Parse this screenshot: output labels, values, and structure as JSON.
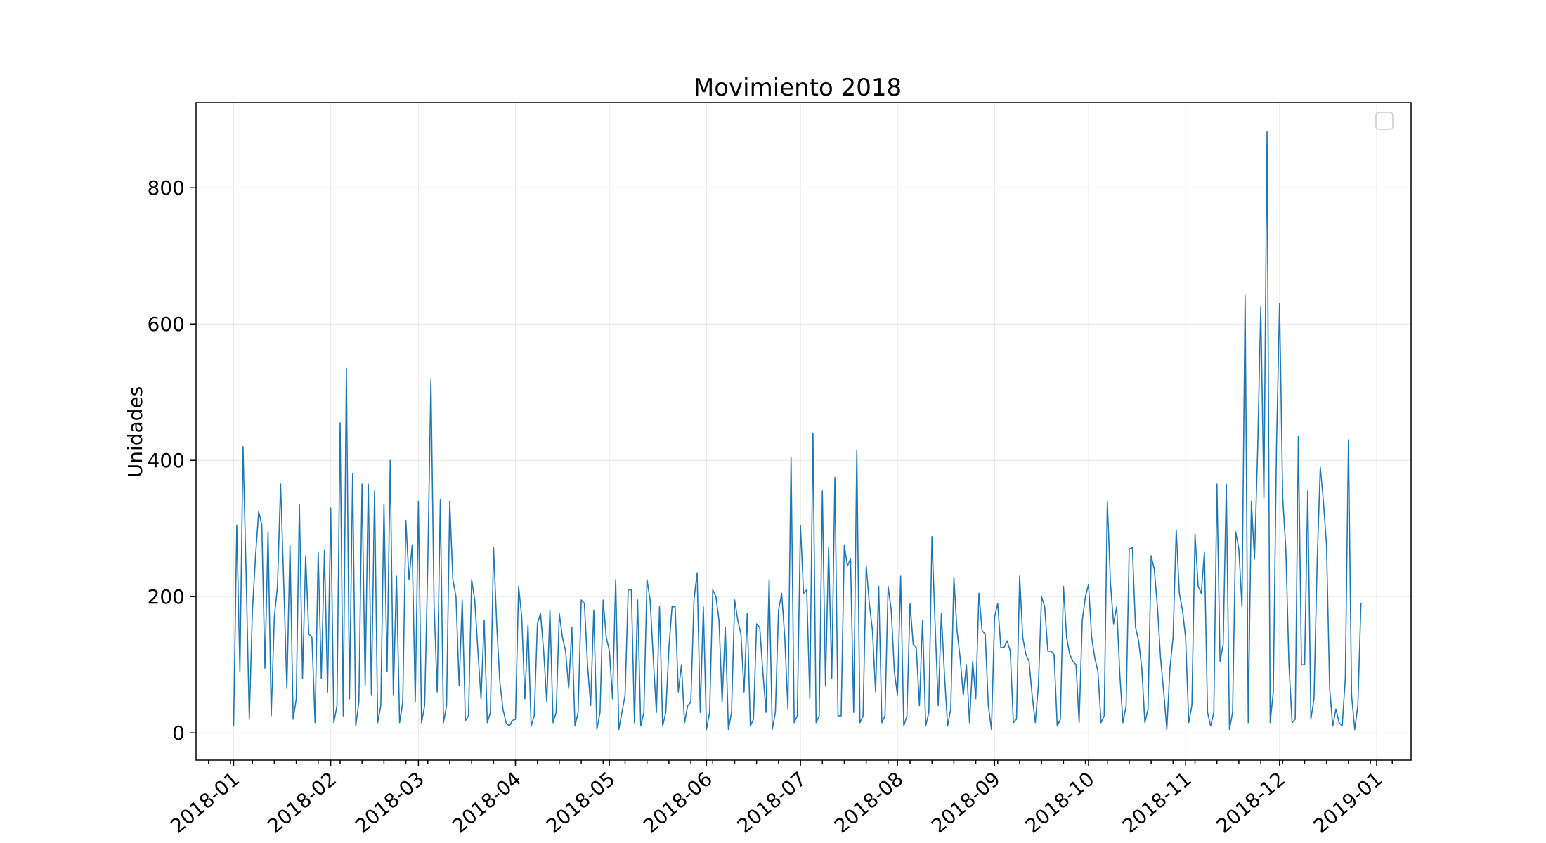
{
  "chart_data": {
    "type": "line",
    "title": "Movimiento 2018",
    "xlabel": "",
    "ylabel": "Unidades",
    "xlim": [
      "2017-12-20",
      "2019-01-12"
    ],
    "ylim": [
      -40,
      925
    ],
    "x_ticks": [
      "2018-01-01",
      "2018-02-01",
      "2018-03-01",
      "2018-04-01",
      "2018-05-01",
      "2018-06-01",
      "2018-07-01",
      "2018-08-01",
      "2018-09-01",
      "2018-10-01",
      "2018-11-01",
      "2018-12-01",
      "2019-01-01"
    ],
    "x_tick_labels": [
      "2018-01",
      "2018-02",
      "2018-03",
      "2018-04",
      "2018-05",
      "2018-06",
      "2018-07",
      "2018-08",
      "2018-09",
      "2018-10",
      "2018-11",
      "2018-12",
      "2019-01"
    ],
    "y_ticks": [
      0,
      200,
      400,
      600,
      800
    ],
    "grid": true,
    "legend": {
      "placement": "top-right",
      "entries": []
    },
    "colors": {
      "series": "#1f77b4"
    },
    "x_start": "2018-01-01",
    "x_step_days": 1,
    "series": [
      {
        "values": [
          10,
          305,
          90,
          420,
          230,
          20,
          180,
          260,
          325,
          305,
          95,
          295,
          25,
          170,
          215,
          365,
          220,
          65,
          275,
          20,
          50,
          335,
          80,
          260,
          145,
          140,
          15,
          265,
          80,
          268,
          60,
          330,
          15,
          40,
          455,
          25,
          535,
          50,
          380,
          10,
          45,
          365,
          70,
          365,
          55,
          355,
          15,
          40,
          335,
          90,
          400,
          55,
          230,
          15,
          45,
          312,
          225,
          275,
          45,
          340,
          15,
          40,
          250,
          518,
          190,
          60,
          342,
          15,
          40,
          340,
          225,
          200,
          70,
          195,
          18,
          25,
          225,
          195,
          120,
          50,
          165,
          15,
          30,
          272,
          160,
          75,
          35,
          15,
          10,
          18,
          20,
          215,
          170,
          50,
          158,
          10,
          25,
          160,
          175,
          120,
          45,
          180,
          15,
          30,
          175,
          140,
          120,
          65,
          155,
          10,
          30,
          195,
          190,
          100,
          40,
          180,
          5,
          30,
          195,
          140,
          120,
          50,
          225,
          5,
          30,
          55,
          210,
          210,
          15,
          195,
          10,
          30,
          225,
          195,
          110,
          30,
          185,
          10,
          30,
          125,
          185,
          185,
          60,
          100,
          15,
          40,
          45,
          195,
          235,
          30,
          185,
          5,
          30,
          210,
          200,
          165,
          45,
          155,
          5,
          30,
          195,
          165,
          145,
          60,
          175,
          10,
          20,
          160,
          155,
          90,
          30,
          225,
          5,
          30,
          180,
          205,
          140,
          35,
          405,
          15,
          25,
          305,
          205,
          210,
          50,
          440,
          15,
          25,
          355,
          70,
          272,
          80,
          375,
          25,
          25,
          275,
          245,
          255,
          30,
          415,
          15,
          25,
          245,
          190,
          150,
          60,
          215,
          15,
          25,
          215,
          180,
          90,
          55,
          230,
          10,
          25,
          190,
          130,
          125,
          40,
          165,
          10,
          30,
          288,
          160,
          40,
          175,
          85,
          10,
          35,
          228,
          150,
          110,
          55,
          100,
          15,
          105,
          50,
          205,
          150,
          145,
          40,
          5,
          170,
          190,
          125,
          125,
          135,
          120,
          15,
          20,
          230,
          140,
          115,
          105,
          55,
          15,
          70,
          200,
          185,
          120,
          120,
          115,
          10,
          20,
          215,
          140,
          115,
          105,
          100,
          15,
          165,
          200,
          218,
          140,
          110,
          90,
          15,
          25,
          340,
          220,
          160,
          185,
          85,
          15,
          40,
          270,
          272,
          155,
          135,
          95,
          15,
          35,
          260,
          240,
          185,
          110,
          60,
          5,
          95,
          140,
          298,
          205,
          180,
          140,
          15,
          40,
          292,
          215,
          205,
          265,
          30,
          10,
          30,
          365,
          105,
          130,
          365,
          5,
          30,
          295,
          270,
          185,
          642,
          15,
          340,
          255,
          415,
          625,
          345,
          882,
          15,
          60,
          415,
          630,
          345,
          270,
          100,
          15,
          20,
          435,
          100,
          100,
          355,
          20,
          50,
          250,
          390,
          340,
          275,
          65,
          10,
          35,
          15,
          10,
          80,
          430,
          55,
          5,
          40,
          190
        ]
      }
    ]
  }
}
